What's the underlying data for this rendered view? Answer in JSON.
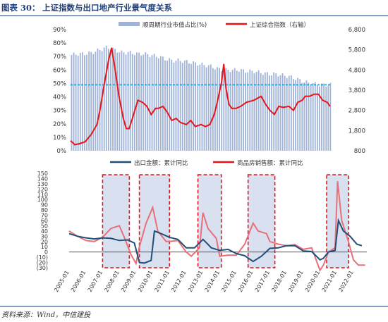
{
  "figure": {
    "number": "图表 30：",
    "title": "上证指数与出口地产行业景气度关系",
    "source": "资料来源：Wind，中信建投"
  },
  "colors": {
    "bar": "#9fb3d9",
    "red": "#e8141a",
    "cyan": "#1aa3d9",
    "navy": "#1f4e79",
    "pink": "#e8707a",
    "shade": "#d9e1f0",
    "dash": "#e8141a"
  },
  "chart_data": [
    {
      "type": "bar",
      "legend": [
        "顺周期行业市值占比(%)",
        "上证综合指数（右轴）"
      ],
      "y_ticks": [
        "0%",
        "10%",
        "20%",
        "30%",
        "40%",
        "50%",
        "60%",
        "70%",
        "80%",
        "90%"
      ],
      "y2_ticks": [
        "800",
        "1,800",
        "2,800",
        "3,800",
        "4,800",
        "5,800",
        "6,800"
      ],
      "ylim": [
        0,
        90
      ],
      "y2lim": [
        800,
        6800
      ],
      "reference_line": 49,
      "x_range": [
        2005.0,
        2022.8
      ],
      "series": [
        {
          "name": "顺周期行业市值占比(%)",
          "kind": "bar",
          "x": [
            2005.0,
            2005.5,
            2006.0,
            2006.5,
            2007.0,
            2007.5,
            2008.0,
            2008.5,
            2009.0,
            2009.5,
            2010.0,
            2010.5,
            2011.0,
            2011.5,
            2012.0,
            2012.5,
            2013.0,
            2013.5,
            2014.0,
            2014.5,
            2015.0,
            2015.5,
            2016.0,
            2016.5,
            2017.0,
            2017.5,
            2018.0,
            2018.5,
            2019.0,
            2019.5,
            2020.0,
            2020.5,
            2021.0,
            2021.5,
            2022.0,
            2022.5
          ],
          "values": [
            71,
            72,
            72,
            73,
            75,
            77,
            75,
            73,
            73,
            72,
            72,
            71,
            70,
            68,
            67,
            67,
            66,
            65,
            64,
            63,
            61,
            60,
            60,
            60,
            59,
            59,
            58,
            57,
            57,
            56,
            55,
            53,
            51,
            50,
            49,
            49
          ]
        },
        {
          "name": "上证综合指数（右轴）",
          "kind": "line",
          "axis": "right",
          "x": [
            2005.0,
            2005.3,
            2005.6,
            2006.0,
            2006.4,
            2006.8,
            2007.0,
            2007.3,
            2007.6,
            2007.8,
            2008.0,
            2008.3,
            2008.6,
            2008.8,
            2009.0,
            2009.3,
            2009.6,
            2009.9,
            2010.2,
            2010.5,
            2010.8,
            2011.0,
            2011.3,
            2011.6,
            2011.9,
            2012.2,
            2012.5,
            2012.9,
            2013.2,
            2013.5,
            2013.9,
            2014.2,
            2014.5,
            2014.8,
            2015.0,
            2015.3,
            2015.45,
            2015.6,
            2015.8,
            2016.0,
            2016.3,
            2016.6,
            2017.0,
            2017.5,
            2018.0,
            2018.3,
            2018.6,
            2018.9,
            2019.2,
            2019.5,
            2019.9,
            2020.2,
            2020.5,
            2020.8,
            2021.0,
            2021.3,
            2021.6,
            2021.9,
            2022.2,
            2022.5,
            2022.7
          ],
          "values": [
            1300,
            1100,
            1150,
            1250,
            1600,
            2100,
            2800,
            4100,
            5300,
            5900,
            5000,
            3500,
            2400,
            1900,
            1900,
            2600,
            3300,
            3200,
            3000,
            2600,
            2900,
            2900,
            3000,
            2700,
            2300,
            2400,
            2200,
            2100,
            2300,
            2000,
            2100,
            2000,
            2100,
            2600,
            3200,
            4200,
            5100,
            3900,
            3100,
            2900,
            2900,
            3000,
            3200,
            3300,
            3500,
            3100,
            2800,
            2600,
            3000,
            2950,
            3000,
            2800,
            3200,
            3300,
            3500,
            3500,
            3600,
            3600,
            3300,
            3200,
            3000
          ]
        }
      ]
    },
    {
      "type": "line",
      "legend": [
        "出口金额：累计同比",
        "商品房销售额：累计同比"
      ],
      "y_ticks": [
        "(30)",
        "(20)",
        "(10)",
        "0",
        "10",
        "20",
        "30",
        "40",
        "50",
        "60",
        "70",
        "80",
        "90",
        "100",
        "110",
        "120",
        "130",
        "140",
        "150"
      ],
      "ylim": [
        -30,
        150
      ],
      "x_ticks": [
        "2005-01",
        "2006-01",
        "2007-01",
        "2008-01",
        "2009-01",
        "2010-01",
        "2011-01",
        "2012-01",
        "2013-01",
        "2014-01",
        "2015-01",
        "2016-01",
        "2017-01",
        "2018-01",
        "2019-01",
        "2020-01",
        "2021-01",
        "2022-01"
      ],
      "x_range": [
        2005.0,
        2022.8
      ],
      "shaded_periods": [
        [
          2007.0,
          2008.6
        ],
        [
          2009.2,
          2011.0
        ],
        [
          2012.7,
          2014.1
        ],
        [
          2015.7,
          2017.3
        ],
        [
          2020.4,
          2021.7
        ]
      ],
      "series": [
        {
          "name": "出口金额：累计同比",
          "x": [
            2005.0,
            2005.5,
            2006.0,
            2006.5,
            2007.0,
            2007.5,
            2008.0,
            2008.5,
            2008.9,
            2009.2,
            2009.5,
            2009.9,
            2010.1,
            2010.5,
            2011.0,
            2011.5,
            2012.0,
            2012.5,
            2013.0,
            2013.2,
            2013.5,
            2014.0,
            2014.5,
            2015.0,
            2015.5,
            2016.0,
            2016.5,
            2017.0,
            2017.5,
            2018.0,
            2018.5,
            2019.0,
            2019.5,
            2020.0,
            2020.2,
            2020.5,
            2020.9,
            2021.1,
            2021.4,
            2021.8,
            2022.2,
            2022.5
          ],
          "values": [
            35,
            30,
            27,
            25,
            27,
            26,
            22,
            23,
            17,
            -20,
            -21,
            -16,
            40,
            35,
            28,
            24,
            8,
            8,
            24,
            18,
            8,
            3,
            5,
            -3,
            -7,
            -18,
            -8,
            7,
            8,
            12,
            12,
            2,
            1,
            -15,
            -12,
            0,
            3,
            60,
            40,
            30,
            15,
            12
          ]
        },
        {
          "name": "商品房销售额：累计同比",
          "x": [
            2005.0,
            2005.5,
            2006.0,
            2006.5,
            2007.0,
            2007.5,
            2008.0,
            2008.3,
            2008.7,
            2009.0,
            2009.2,
            2009.6,
            2010.0,
            2010.3,
            2010.8,
            2011.0,
            2011.5,
            2012.0,
            2012.3,
            2012.8,
            2013.0,
            2013.3,
            2013.8,
            2014.0,
            2014.5,
            2015.0,
            2015.5,
            2016.0,
            2016.3,
            2016.8,
            2017.0,
            2017.5,
            2018.0,
            2018.5,
            2019.0,
            2019.5,
            2020.0,
            2020.2,
            2020.5,
            2020.9,
            2021.05,
            2021.3,
            2021.7,
            2022.0,
            2022.3,
            2022.7
          ],
          "values": [
            40,
            30,
            22,
            20,
            28,
            45,
            50,
            28,
            -5,
            -22,
            10,
            55,
            85,
            40,
            20,
            20,
            22,
            0,
            -8,
            8,
            75,
            45,
            26,
            -8,
            -6,
            -6,
            15,
            55,
            40,
            35,
            20,
            15,
            12,
            14,
            5,
            8,
            -35,
            -25,
            0,
            8,
            135,
            60,
            20,
            -15,
            -25,
            -25
          ]
        }
      ]
    }
  ]
}
